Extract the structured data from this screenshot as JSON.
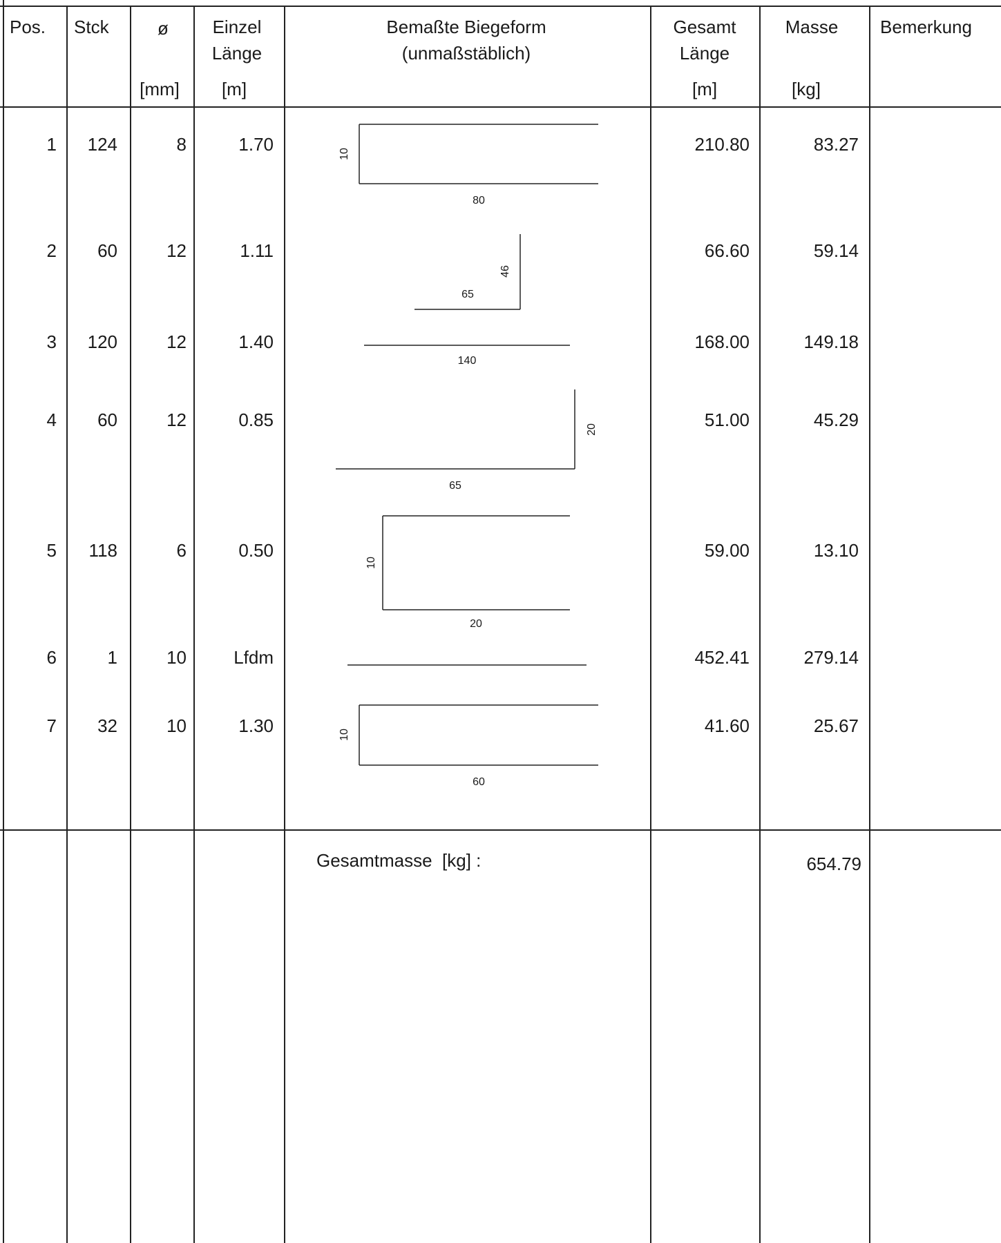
{
  "header": {
    "pos": "Pos.",
    "stck": "Stck",
    "dia": "ø",
    "dia_unit": "[mm]",
    "einzel_l1": "Einzel",
    "einzel_l2": "Länge",
    "einzel_unit": "[m]",
    "form_l1": "Bemaßte Biegeform",
    "form_l2": "(unmaßstäblich)",
    "gesamt_l1": "Gesamt",
    "gesamt_l2": "Länge",
    "gesamt_unit": "[m]",
    "masse": "Masse",
    "masse_unit": "[kg]",
    "bemerkung": "Bemerkung"
  },
  "rows": [
    {
      "pos": "1",
      "stck": "124",
      "dia": "8",
      "einzel": "1.70",
      "gesamt": "210.80",
      "masse": "83.27",
      "dims": [
        "10",
        "80"
      ]
    },
    {
      "pos": "2",
      "stck": "60",
      "dia": "12",
      "einzel": "1.11",
      "gesamt": "66.60",
      "masse": "59.14",
      "dims": [
        "65",
        "46"
      ]
    },
    {
      "pos": "3",
      "stck": "120",
      "dia": "12",
      "einzel": "1.40",
      "gesamt": "168.00",
      "masse": "149.18",
      "dims": [
        "140"
      ]
    },
    {
      "pos": "4",
      "stck": "60",
      "dia": "12",
      "einzel": "0.85",
      "gesamt": "51.00",
      "masse": "45.29",
      "dims": [
        "65",
        "20"
      ]
    },
    {
      "pos": "5",
      "stck": "118",
      "dia": "6",
      "einzel": "0.50",
      "gesamt": "59.00",
      "masse": "13.10",
      "dims": [
        "10",
        "20"
      ]
    },
    {
      "pos": "6",
      "stck": "1",
      "dia": "10",
      "einzel": "Lfdm",
      "gesamt": "452.41",
      "masse": "279.14",
      "dims": []
    },
    {
      "pos": "7",
      "stck": "32",
      "dia": "10",
      "einzel": "1.30",
      "gesamt": "41.60",
      "masse": "25.67",
      "dims": [
        "10",
        "60"
      ]
    }
  ],
  "total": {
    "label": "Gesamtmasse  [kg] :",
    "value": "654.79"
  }
}
